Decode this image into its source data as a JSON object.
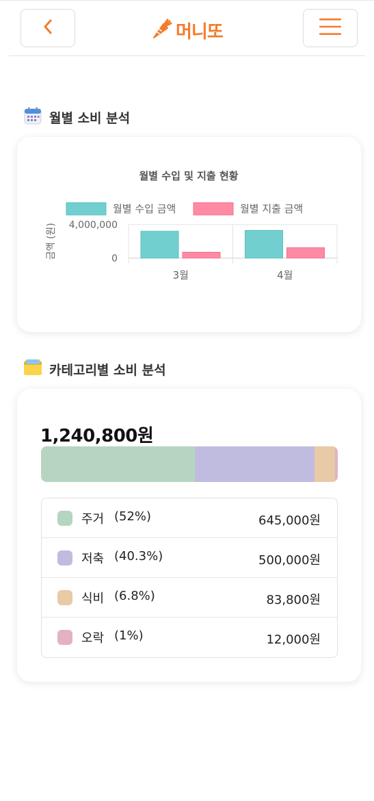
{
  "header": {
    "logo_text": "머니또",
    "back_icon": "chevron-left-icon",
    "menu_icon": "hamburger-menu-icon",
    "accent_color": "#f47b2c"
  },
  "monthly_section": {
    "title": "월별 소비 분석",
    "icon": "calendar-icon"
  },
  "chart_data": {
    "type": "bar",
    "title": "월별 수입 및 지출 현황",
    "ylabel": "금액 (원)",
    "xlabel": "",
    "categories": [
      "3월",
      "4월"
    ],
    "y_ticks": [
      "4,000,000",
      "0"
    ],
    "ylim": [
      0,
      4000000
    ],
    "grid": true,
    "legend_position": "top",
    "series": [
      {
        "name": "월별 수입 금액",
        "values": [
          3200000,
          3300000
        ],
        "color": "#72cfcf",
        "border": "#5bbcbc"
      },
      {
        "name": "월별 지출 금액",
        "values": [
          700000,
          1240800
        ],
        "color": "#ff8aa3",
        "border": "#f46f8c"
      }
    ]
  },
  "category_section": {
    "title": "카테고리별 소비 분석",
    "icon": "folder-icon",
    "total": "1,240,800원",
    "categories": [
      {
        "name": "주거",
        "pct_label": "(52%)",
        "pct": 52,
        "amount": "645,000원",
        "color": "#b5d5c1"
      },
      {
        "name": "저축",
        "pct_label": "(40.3%)",
        "pct": 40.3,
        "amount": "500,000원",
        "color": "#c0bce0"
      },
      {
        "name": "식비",
        "pct_label": "(6.8%)",
        "pct": 6.8,
        "amount": "83,800원",
        "color": "#e8caa6"
      },
      {
        "name": "오락",
        "pct_label": "(1%)",
        "pct": 1,
        "amount": "12,000원",
        "color": "#e3b2c2"
      }
    ]
  }
}
